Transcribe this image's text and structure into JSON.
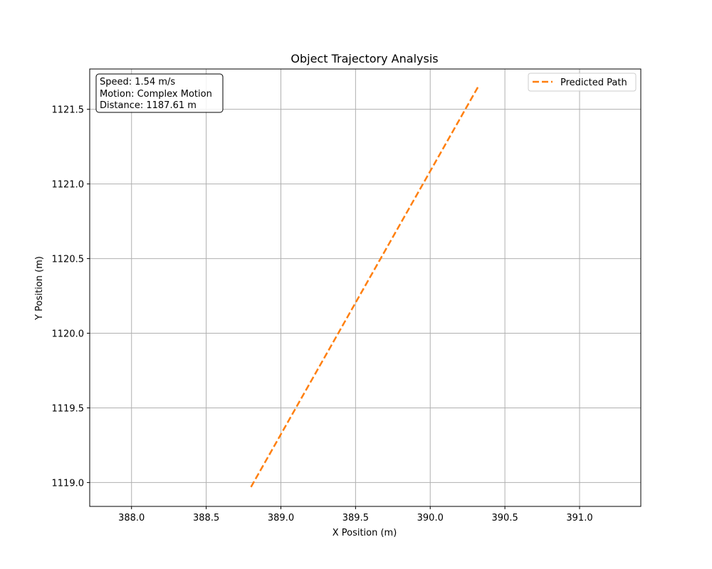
{
  "chart_data": {
    "type": "line",
    "title": "Object Trajectory Analysis",
    "xlabel": "X Position (m)",
    "ylabel": "Y Position (m)",
    "xlim": [
      387.72,
      391.41
    ],
    "ylim": [
      1118.84,
      1121.77
    ],
    "xticks": [
      388.0,
      388.5,
      389.0,
      389.5,
      390.0,
      390.5,
      391.0
    ],
    "yticks": [
      1119.0,
      1119.5,
      1120.0,
      1120.5,
      1121.0,
      1121.5
    ],
    "xtick_labels": [
      "388.0",
      "388.5",
      "389.0",
      "389.5",
      "390.0",
      "390.5",
      "391.0"
    ],
    "ytick_labels": [
      "1119.0",
      "1119.5",
      "1120.0",
      "1120.5",
      "1121.0",
      "1121.5"
    ],
    "grid": true,
    "legend_position": "top-right",
    "series": [
      {
        "name": "Predicted Path",
        "style": "dashed",
        "color": "#ff7f0e",
        "x": [
          388.8,
          390.32
        ],
        "y": [
          1118.97,
          1121.65
        ]
      }
    ],
    "info_box": {
      "position": "top-left",
      "lines": [
        "Speed: 1.54 m/s",
        "Motion: Complex Motion",
        "Distance: 1187.61 m"
      ]
    }
  }
}
